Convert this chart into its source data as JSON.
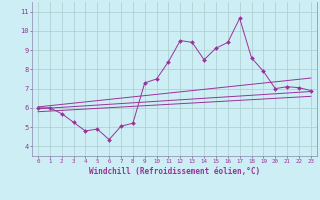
{
  "xlabel": "Windchill (Refroidissement éolien,°C)",
  "bg_color": "#cceef4",
  "line_color": "#993399",
  "spine_color": "#8888aa",
  "grid_color": "#aacccc",
  "xlim": [
    -0.5,
    23.5
  ],
  "ylim": [
    3.5,
    11.5
  ],
  "xticks": [
    0,
    1,
    2,
    3,
    4,
    5,
    6,
    7,
    8,
    9,
    10,
    11,
    12,
    13,
    14,
    15,
    16,
    17,
    18,
    19,
    20,
    21,
    22,
    23
  ],
  "yticks": [
    4,
    5,
    6,
    7,
    8,
    9,
    10,
    11
  ],
  "main_line_x": [
    0,
    1,
    2,
    3,
    4,
    5,
    6,
    7,
    8,
    9,
    10,
    11,
    12,
    13,
    14,
    15,
    16,
    17,
    18,
    19,
    20,
    21,
    22,
    23
  ],
  "main_line_y": [
    6.0,
    6.0,
    5.7,
    5.25,
    4.8,
    4.9,
    4.35,
    5.05,
    5.2,
    7.3,
    7.5,
    8.4,
    9.5,
    9.4,
    8.5,
    9.1,
    9.4,
    10.65,
    8.6,
    7.9,
    7.0,
    7.1,
    7.05,
    6.9
  ],
  "line2_x": [
    0,
    23
  ],
  "line2_y": [
    6.05,
    7.55
  ],
  "line3_x": [
    0,
    23
  ],
  "line3_y": [
    5.95,
    6.85
  ],
  "line4_x": [
    0,
    23
  ],
  "line4_y": [
    5.8,
    6.6
  ]
}
